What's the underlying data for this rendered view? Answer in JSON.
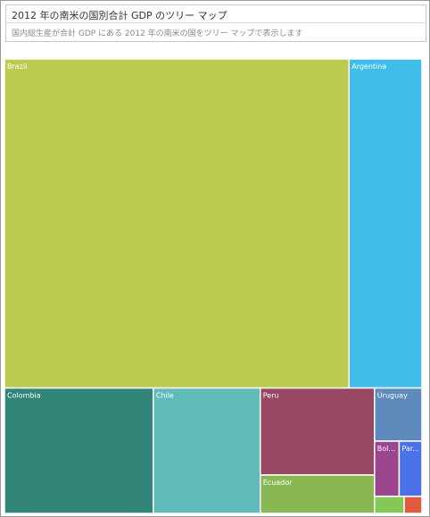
{
  "header": {
    "title": "2012 年の南米の国別合計 GDP のツリー マップ",
    "subtitle": "国内総生産が合計 GDP にある 2012 年の南米の国をツリー マップで表示します"
  },
  "chart_data": {
    "type": "treemap",
    "title": "2012 年の南米の国別合計 GDP のツリー マップ",
    "subtitle": "国内総生産が合計 GDP にある 2012 年の南米の国をツリー マップで表示します",
    "items": [
      {
        "label": "Brazil",
        "value": 2248,
        "color": "#bccb50"
      },
      {
        "label": "Argentina",
        "value": 476,
        "color": "#41bde9"
      },
      {
        "label": "Colombia",
        "value": 370,
        "color": "#308576"
      },
      {
        "label": "Chile",
        "value": 266,
        "color": "#5fbbba"
      },
      {
        "label": "Peru",
        "value": 197,
        "color": "#984762"
      },
      {
        "label": "Ecuador",
        "value": 87,
        "color": "#88b754"
      },
      {
        "label": "Uruguay",
        "value": 50,
        "color": "#5e8bbb"
      },
      {
        "label": "Bol...",
        "value": 27,
        "color": "#9c4690"
      },
      {
        "label": "Par...",
        "value": 25,
        "color": "#4a72e8"
      },
      {
        "label": "",
        "value": 10,
        "color": "#84c955"
      },
      {
        "label": "",
        "value": 6,
        "color": "#e25b3f"
      }
    ]
  }
}
